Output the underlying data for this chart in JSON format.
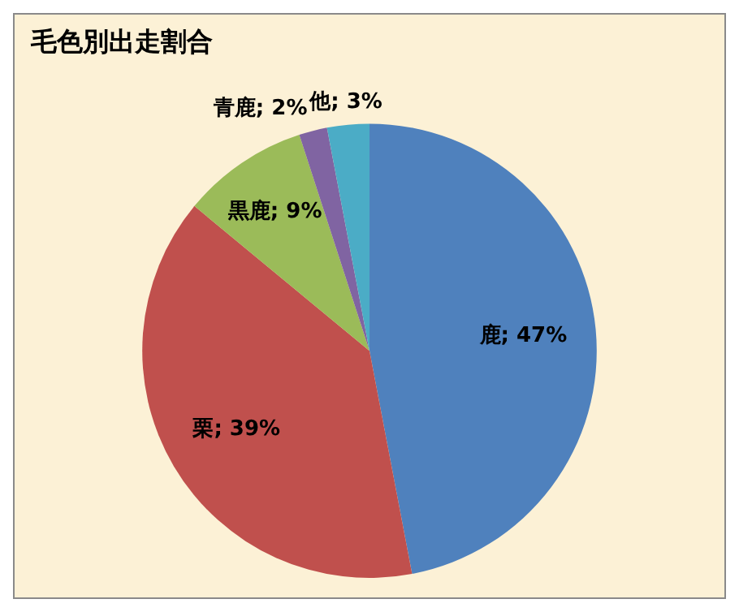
{
  "chart_data": {
    "type": "pie",
    "title": "毛色別出走割合",
    "categories": [
      "鹿",
      "栗",
      "黒鹿",
      "青鹿",
      "他"
    ],
    "values": [
      47,
      39,
      9,
      2,
      3
    ],
    "colors": [
      "#4f81bd",
      "#c0504d",
      "#9bbb59",
      "#8064a2",
      "#4bacc6"
    ],
    "value_labels": [
      "47%",
      "39%",
      "9%",
      "2%",
      "3%"
    ],
    "legend": false
  }
}
